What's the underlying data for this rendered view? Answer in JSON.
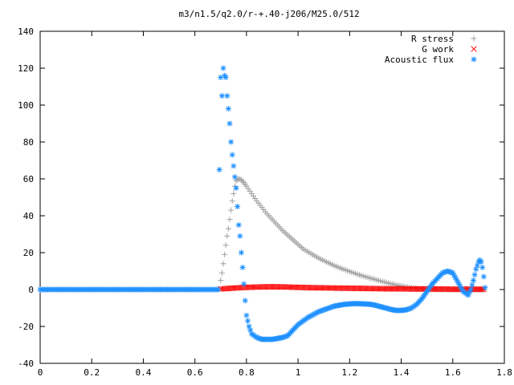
{
  "chart_data": {
    "type": "scatter",
    "title": "m3/n1.5/q2.0/r-+.40-j206/M25.0/512",
    "xlabel": "",
    "ylabel": "",
    "xlim": [
      0,
      1.8
    ],
    "ylim": [
      -40,
      140
    ],
    "x_ticks": [
      "0",
      "0.2",
      "0.4",
      "0.6",
      "0.8",
      "1",
      "1.2",
      "1.4",
      "1.6",
      "1.8"
    ],
    "y_ticks": [
      "-40",
      "-20",
      "0",
      "20",
      "40",
      "60",
      "80",
      "100",
      "120",
      "140"
    ],
    "grid": false,
    "legend_position": "top-right",
    "series": [
      {
        "name": "R stress",
        "marker": "plus",
        "color": "#a0a0a0",
        "points": [
          [
            0.7,
            5
          ],
          [
            0.705,
            9
          ],
          [
            0.71,
            14
          ],
          [
            0.715,
            19
          ],
          [
            0.72,
            24
          ],
          [
            0.725,
            29
          ],
          [
            0.73,
            33
          ],
          [
            0.735,
            38
          ],
          [
            0.74,
            43
          ],
          [
            0.745,
            48
          ],
          [
            0.75,
            52
          ],
          [
            0.755,
            56
          ],
          [
            0.76,
            59
          ],
          [
            0.77,
            60
          ],
          [
            0.78,
            59.5
          ],
          [
            0.79,
            58
          ],
          [
            0.8,
            56
          ],
          [
            0.82,
            52
          ],
          [
            0.84,
            48
          ],
          [
            0.86,
            44.5
          ],
          [
            0.88,
            41
          ],
          [
            0.9,
            38
          ],
          [
            0.92,
            35
          ],
          [
            0.94,
            32
          ],
          [
            0.96,
            29.5
          ],
          [
            0.98,
            27
          ],
          [
            1.0,
            24.5
          ],
          [
            1.02,
            22
          ],
          [
            1.05,
            19.5
          ],
          [
            1.08,
            17
          ],
          [
            1.11,
            15
          ],
          [
            1.14,
            13
          ],
          [
            1.17,
            11.3
          ],
          [
            1.2,
            9.8
          ],
          [
            1.23,
            8.3
          ],
          [
            1.26,
            7
          ],
          [
            1.29,
            5.8
          ],
          [
            1.32,
            4.6
          ],
          [
            1.35,
            3.5
          ],
          [
            1.38,
            2.5
          ],
          [
            1.41,
            1.7
          ],
          [
            1.44,
            1
          ],
          [
            1.47,
            0.5
          ],
          [
            1.5,
            0.2
          ],
          [
            1.55,
            0
          ],
          [
            1.6,
            0
          ],
          [
            1.65,
            0
          ],
          [
            1.7,
            0
          ],
          [
            1.72,
            0
          ]
        ]
      },
      {
        "name": "G work",
        "marker": "cross",
        "color": "#ff0000",
        "points": [
          [
            0.7,
            0.3
          ],
          [
            0.75,
            0.8
          ],
          [
            0.8,
            1.2
          ],
          [
            0.85,
            1.4
          ],
          [
            0.9,
            1.5
          ],
          [
            0.95,
            1.4
          ],
          [
            1.0,
            1.2
          ],
          [
            1.05,
            1.0
          ],
          [
            1.1,
            0.9
          ],
          [
            1.15,
            0.8
          ],
          [
            1.2,
            0.7
          ],
          [
            1.25,
            0.6
          ],
          [
            1.3,
            0.5
          ],
          [
            1.35,
            0.4
          ],
          [
            1.4,
            0.4
          ],
          [
            1.45,
            0.3
          ],
          [
            1.5,
            0.3
          ],
          [
            1.55,
            0.3
          ],
          [
            1.6,
            0.2
          ],
          [
            1.65,
            0.2
          ],
          [
            1.7,
            0.2
          ],
          [
            1.72,
            0.1
          ]
        ]
      },
      {
        "name": "Acoustic flux",
        "marker": "star",
        "color": "#1e90ff",
        "points": [
          [
            0.0,
            0
          ],
          [
            0.1,
            0
          ],
          [
            0.2,
            0
          ],
          [
            0.3,
            0
          ],
          [
            0.4,
            0
          ],
          [
            0.5,
            0
          ],
          [
            0.6,
            0
          ],
          [
            0.69,
            0
          ],
          [
            0.695,
            65
          ],
          [
            0.7,
            115
          ],
          [
            0.705,
            105
          ],
          [
            0.71,
            120
          ],
          [
            0.715,
            116
          ],
          [
            0.72,
            115
          ],
          [
            0.725,
            105
          ],
          [
            0.73,
            98
          ],
          [
            0.735,
            90
          ],
          [
            0.74,
            80
          ],
          [
            0.745,
            73
          ],
          [
            0.75,
            67
          ],
          [
            0.755,
            61
          ],
          [
            0.76,
            55
          ],
          [
            0.765,
            45
          ],
          [
            0.77,
            35
          ],
          [
            0.775,
            29
          ],
          [
            0.78,
            20
          ],
          [
            0.785,
            12
          ],
          [
            0.79,
            3
          ],
          [
            0.795,
            -6
          ],
          [
            0.8,
            -14
          ],
          [
            0.81,
            -20
          ],
          [
            0.82,
            -24
          ],
          [
            0.84,
            -26
          ],
          [
            0.86,
            -27
          ],
          [
            0.88,
            -27
          ],
          [
            0.9,
            -27
          ],
          [
            0.92,
            -26.5
          ],
          [
            0.94,
            -26
          ],
          [
            0.96,
            -25
          ],
          [
            0.98,
            -22
          ],
          [
            1.0,
            -19
          ],
          [
            1.02,
            -17
          ],
          [
            1.04,
            -15
          ],
          [
            1.06,
            -13.5
          ],
          [
            1.08,
            -12
          ],
          [
            1.1,
            -11
          ],
          [
            1.12,
            -10
          ],
          [
            1.14,
            -9
          ],
          [
            1.16,
            -8.5
          ],
          [
            1.18,
            -8
          ],
          [
            1.2,
            -7.8
          ],
          [
            1.22,
            -7.6
          ],
          [
            1.24,
            -7.7
          ],
          [
            1.26,
            -7.8
          ],
          [
            1.28,
            -8
          ],
          [
            1.3,
            -8.5
          ],
          [
            1.32,
            -9.3
          ],
          [
            1.34,
            -10
          ],
          [
            1.36,
            -10.8
          ],
          [
            1.38,
            -11.3
          ],
          [
            1.4,
            -11.3
          ],
          [
            1.42,
            -11
          ],
          [
            1.44,
            -10
          ],
          [
            1.46,
            -8
          ],
          [
            1.48,
            -5
          ],
          [
            1.5,
            -1
          ],
          [
            1.52,
            3
          ],
          [
            1.54,
            6
          ],
          [
            1.56,
            9
          ],
          [
            1.58,
            10
          ],
          [
            1.6,
            9
          ],
          [
            1.62,
            4
          ],
          [
            1.64,
            -1
          ],
          [
            1.66,
            -3
          ],
          [
            1.67,
            0
          ],
          [
            1.68,
            5
          ],
          [
            1.69,
            11
          ],
          [
            1.7,
            15
          ],
          [
            1.705,
            16
          ],
          [
            1.71,
            15
          ],
          [
            1.715,
            12
          ],
          [
            1.72,
            7
          ],
          [
            1.725,
            1
          ]
        ]
      }
    ]
  }
}
